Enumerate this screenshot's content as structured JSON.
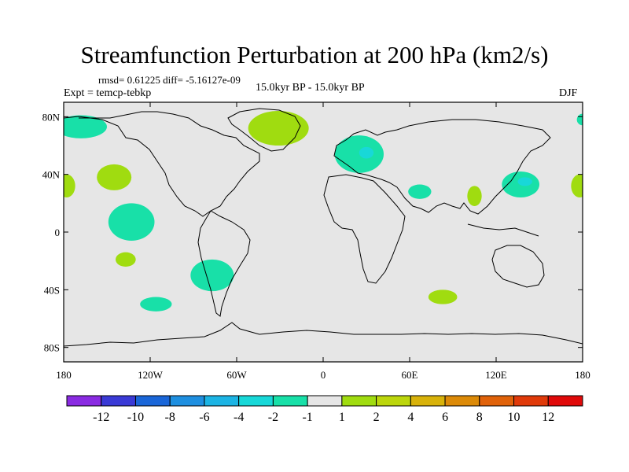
{
  "chart_data": {
    "type": "heatmap",
    "title": "Streamfunction Perturbation at 200 hPa (km2/s)",
    "stats": "rmsd= 0.61225 diff= -5.16127e-09",
    "experiment": "Expt = temcp-tebkp",
    "period": "15.0kyr BP - 15.0kyr BP",
    "season": "DJF",
    "xlim": [
      -180,
      180
    ],
    "ylim": [
      -90,
      90
    ],
    "xticks": [
      {
        "value": -180,
        "label": "180"
      },
      {
        "value": -120,
        "label": "120W"
      },
      {
        "value": -60,
        "label": "60W"
      },
      {
        "value": 0,
        "label": "0"
      },
      {
        "value": 60,
        "label": "60E"
      },
      {
        "value": 120,
        "label": "120E"
      },
      {
        "value": 180,
        "label": "180"
      }
    ],
    "yticks": [
      {
        "value": 80,
        "label": "80N"
      },
      {
        "value": 40,
        "label": "40N"
      },
      {
        "value": 0,
        "label": "0"
      },
      {
        "value": -40,
        "label": "40S"
      },
      {
        "value": -80,
        "label": "80S"
      }
    ],
    "colorbar": {
      "levels": [
        -12,
        -10,
        -8,
        -6,
        -4,
        -2,
        -1,
        1,
        2,
        4,
        6,
        8,
        10,
        12
      ],
      "labels": [
        "-12",
        "-10",
        "-8",
        "-6",
        "-4",
        "-2",
        "-1",
        "1",
        "2",
        "4",
        "6",
        "8",
        "10",
        "12"
      ],
      "colors": [
        "#8a2be2",
        "#3a3ad6",
        "#1a66d8",
        "#1e8fe0",
        "#1cb4e4",
        "#18d8d8",
        "#18e0a8",
        "#e6e6e6",
        "#a0dc10",
        "#bcd60c",
        "#d8b20a",
        "#dc8a08",
        "#e0620a",
        "#e03a0a",
        "#e00a0a"
      ]
    },
    "regions": [
      {
        "name": "north-pacific-east-asia-negative",
        "lon": -168,
        "lat": 73,
        "rx": 18,
        "ry": 8,
        "value": -1.5
      },
      {
        "name": "north-atlantic-positive",
        "lon": -31,
        "lat": 72,
        "rx": 21,
        "ry": 12,
        "value": 1.5
      },
      {
        "name": "europe-negative",
        "lon": 25,
        "lat": 54,
        "rx": 17,
        "ry": 13,
        "value": -1.5
      },
      {
        "name": "europe-core-negative",
        "lon": 30,
        "lat": 55,
        "rx": 5,
        "ry": 4,
        "value": -2.5
      },
      {
        "name": "north-pacific-positive",
        "lon": -145,
        "lat": 38,
        "rx": 12,
        "ry": 9,
        "value": 1.5
      },
      {
        "name": "dateline-west-positive",
        "lon": -178,
        "lat": 32,
        "rx": 6,
        "ry": 8,
        "value": 1.5
      },
      {
        "name": "dateline-east-positive",
        "lon": 178,
        "lat": 32,
        "rx": 6,
        "ry": 8,
        "value": 1.5
      },
      {
        "name": "middle-east-negative",
        "lon": 67,
        "lat": 28,
        "rx": 8,
        "ry": 5,
        "value": -1.5
      },
      {
        "name": "south-asia-positive",
        "lon": 105,
        "lat": 25,
        "rx": 5,
        "ry": 7,
        "value": 1.5
      },
      {
        "name": "japan-negative",
        "lon": 137,
        "lat": 33,
        "rx": 13,
        "ry": 9,
        "value": -1.5
      },
      {
        "name": "japan-core-negative",
        "lon": 140,
        "lat": 35,
        "rx": 5,
        "ry": 3,
        "value": -2.5
      },
      {
        "name": "arctic-northeast-negative",
        "lon": 180,
        "lat": 78,
        "rx": 4,
        "ry": 4,
        "value": -1.5
      },
      {
        "name": "tropical-east-pacific-negative",
        "lon": -133,
        "lat": 7,
        "rx": 16,
        "ry": 13,
        "value": -1.5
      },
      {
        "name": "south-pacific-positive",
        "lon": -137,
        "lat": -19,
        "rx": 7,
        "ry": 5,
        "value": 1.5
      },
      {
        "name": "south-america-negative",
        "lon": -77,
        "lat": -30,
        "rx": 15,
        "ry": 11,
        "value": -1.5
      },
      {
        "name": "southeast-pacific-negative",
        "lon": -116,
        "lat": -50,
        "rx": 11,
        "ry": 5,
        "value": -1.5
      },
      {
        "name": "south-indian-ocean-positive",
        "lon": 83,
        "lat": -45,
        "rx": 10,
        "ry": 5,
        "value": 1.5
      }
    ]
  }
}
